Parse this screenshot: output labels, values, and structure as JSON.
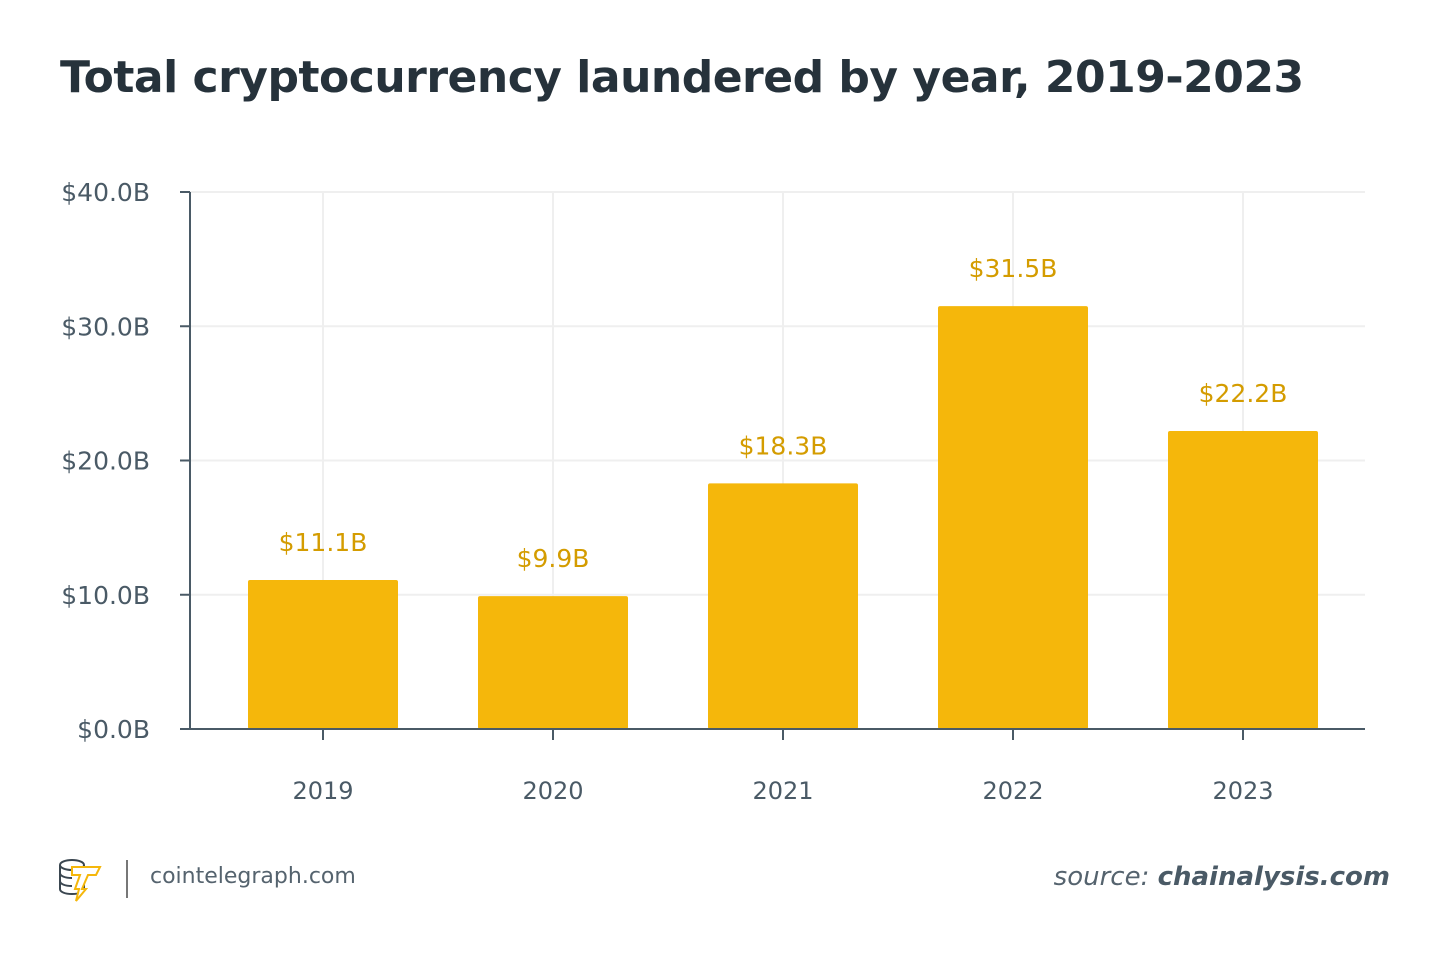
{
  "chart_data": {
    "type": "bar",
    "title": "Total cryptocurrency laundered by year, 2019-2023",
    "categories": [
      "2019",
      "2020",
      "2021",
      "2022",
      "2023"
    ],
    "values": [
      11.1,
      9.9,
      18.3,
      31.5,
      22.2
    ],
    "data_labels": [
      "$11.1B",
      "$9.9B",
      "$18.3B",
      "$31.5B",
      "$22.2B"
    ],
    "y_ticks": [
      0,
      10,
      20,
      30,
      40
    ],
    "y_tick_labels": [
      "$0.0B",
      "$10.0B",
      "$20.0B",
      "$30.0B",
      "$40.0B"
    ],
    "ylim": [
      0,
      40
    ],
    "xlabel": "",
    "ylabel": "",
    "grid": true,
    "colors": {
      "bar": "#f5b70b",
      "label": "#d49c00",
      "axis": "#4a5a66",
      "grid": "#efefef"
    }
  },
  "footer": {
    "brand": "cointelegraph.com",
    "source_prefix": "source:",
    "source_name": "chainalysis.com",
    "logo_icon": "cointelegraph-logo-icon"
  }
}
